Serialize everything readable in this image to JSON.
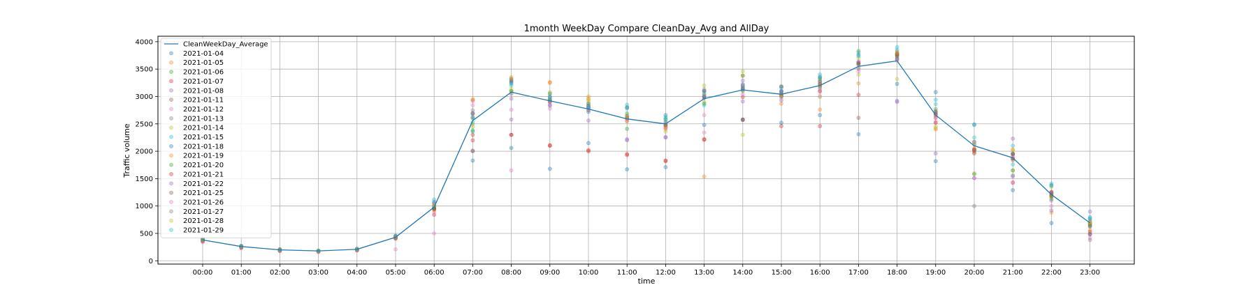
{
  "chart_data": {
    "type": "scatter",
    "title": "1month WeekDay Compare CleanDay_Avg and AllDay",
    "xlabel": "time",
    "ylabel": "Traffic volume",
    "categories": [
      "00:00",
      "01:00",
      "02:00",
      "03:00",
      "04:00",
      "05:00",
      "06:00",
      "07:00",
      "08:00",
      "09:00",
      "10:00",
      "11:00",
      "12:00",
      "13:00",
      "14:00",
      "15:00",
      "16:00",
      "17:00",
      "18:00",
      "19:00",
      "20:00",
      "21:00",
      "22:00",
      "23:00"
    ],
    "ylim": [
      -60,
      4100
    ],
    "yticks": [
      0,
      500,
      1000,
      1500,
      2000,
      2500,
      3000,
      3500,
      4000
    ],
    "grid": true,
    "legend_position": "upper-left",
    "line_series": {
      "name": "CleanWeekDay_Average",
      "color": "#1f77b4",
      "values": [
        380,
        260,
        200,
        180,
        210,
        430,
        980,
        2560,
        3080,
        2920,
        2770,
        2590,
        2500,
        2960,
        3120,
        3040,
        3200,
        3550,
        3650,
        2660,
        2100,
        1880,
        1210,
        690
      ]
    },
    "series": [
      {
        "name": "2021-01-04",
        "color": "#1f77b4",
        "values": [
          370,
          250,
          190,
          170,
          200,
          420,
          950,
          1830,
          2060,
          1680,
          2150,
          1670,
          1710,
          2480,
          2580,
          2520,
          2660,
          2310,
          3230,
          1820,
          2490,
          1290,
          690,
          480
        ]
      },
      {
        "name": "2021-01-05",
        "color": "#ff7f0e",
        "values": [
          360,
          240,
          185,
          170,
          195,
          410,
          930,
          2930,
          3300,
          3260,
          2950,
          2620,
          2440,
          3020,
          3150,
          3040,
          3220,
          3610,
          3750,
          2690,
          2050,
          1930,
          1230,
          680
        ]
      },
      {
        "name": "2021-01-06",
        "color": "#2ca02c",
        "values": [
          380,
          255,
          195,
          175,
          205,
          425,
          960,
          2600,
          3100,
          2940,
          2800,
          2410,
          2470,
          2980,
          3100,
          3010,
          3180,
          3520,
          3700,
          2660,
          1990,
          1870,
          1200,
          690
        ]
      },
      {
        "name": "2021-01-07",
        "color": "#d62728",
        "values": [
          390,
          260,
          200,
          180,
          210,
          430,
          990,
          2200,
          2300,
          2100,
          2020,
          1950,
          1820,
          2210,
          2990,
          2460,
          2460,
          3030,
          3770,
          2610,
          2020,
          1870,
          1170,
          670
        ]
      },
      {
        "name": "2021-01-08",
        "color": "#9467bd",
        "values": [
          400,
          270,
          210,
          185,
          220,
          450,
          1020,
          2000,
          2580,
          2850,
          2560,
          2200,
          2250,
          2990,
          2910,
          2930,
          3250,
          3600,
          2920,
          1960,
          1510,
          1540,
          1100,
          620
        ]
      },
      {
        "name": "2021-01-11",
        "color": "#8c564b",
        "values": [
          365,
          245,
          190,
          170,
          200,
          415,
          945,
          2680,
          3250,
          2950,
          2790,
          2610,
          2480,
          3100,
          2580,
          3180,
          3200,
          2610,
          3780,
          2680,
          2030,
          1840,
          1220,
          640
        ]
      },
      {
        "name": "2021-01-12",
        "color": "#e377c2",
        "values": [
          340,
          230,
          175,
          160,
          185,
          210,
          500,
          2920,
          1650,
          2780,
          2880,
          2650,
          2460,
          2660,
          3040,
          3020,
          3110,
          3460,
          3650,
          2540,
          2010,
          1910,
          1240,
          700
        ]
      },
      {
        "name": "2021-01-13",
        "color": "#7f7f7f",
        "values": [
          375,
          255,
          195,
          175,
          205,
          430,
          1080,
          2750,
          3270,
          3000,
          2840,
          2640,
          2540,
          3060,
          3120,
          3100,
          3280,
          3600,
          3680,
          2700,
          2170,
          1950,
          1250,
          720
        ]
      },
      {
        "name": "2021-01-14",
        "color": "#bcbd22",
        "values": [
          385,
          260,
          200,
          180,
          210,
          440,
          1000,
          2450,
          3320,
          3060,
          2920,
          2540,
          2400,
          2900,
          2300,
          3050,
          2990,
          3400,
          3320,
          2420,
          1600,
          1650,
          1180,
          690
        ]
      },
      {
        "name": "2021-01-15",
        "color": "#17becf",
        "values": [
          395,
          270,
          205,
          185,
          215,
          455,
          1060,
          2360,
          3200,
          2930,
          2790,
          2850,
          2620,
          2840,
          3180,
          3100,
          3340,
          3800,
          3900,
          2940,
          2480,
          1760,
          1410,
          780
        ]
      },
      {
        "name": "2021-01-18",
        "color": "#1f77b4",
        "values": [
          370,
          250,
          190,
          175,
          200,
          420,
          960,
          2620,
          3280,
          3050,
          2720,
          2800,
          2660,
          3100,
          3140,
          3080,
          3360,
          3760,
          3680,
          3080,
          2120,
          1960,
          1380,
          760
        ]
      },
      {
        "name": "2021-01-19",
        "color": "#ff7f0e",
        "values": [
          355,
          240,
          185,
          170,
          195,
          405,
          920,
          2950,
          3350,
          3250,
          3000,
          2560,
          2430,
          1540,
          3380,
          2870,
          2760,
          3240,
          3820,
          2400,
          2040,
          2030,
          880,
          560
        ]
      },
      {
        "name": "2021-01-20",
        "color": "#2ca02c",
        "values": [
          380,
          255,
          195,
          175,
          205,
          430,
          970,
          2380,
          3100,
          2910,
          2870,
          2690,
          2590,
          2870,
          3380,
          3000,
          3320,
          3830,
          3760,
          2770,
          1580,
          1650,
          1130,
          640
        ]
      },
      {
        "name": "2021-01-21",
        "color": "#d62728",
        "values": [
          390,
          265,
          200,
          180,
          210,
          435,
          840,
          2300,
          2300,
          2110,
          2000,
          1930,
          1830,
          2220,
          3200,
          3010,
          3090,
          3620,
          3790,
          2520,
          1960,
          1430,
          1260,
          490
        ]
      },
      {
        "name": "2021-01-22",
        "color": "#9467bd",
        "values": [
          400,
          270,
          210,
          185,
          215,
          450,
          1050,
          2700,
          2960,
          2830,
          2820,
          2220,
          2260,
          2970,
          3290,
          3100,
          3150,
          3640,
          2900,
          2680,
          2170,
          2230,
          920,
          900
        ]
      },
      {
        "name": "2021-01-25",
        "color": "#8c564b",
        "values": [
          370,
          250,
          190,
          170,
          200,
          420,
          950,
          2010,
          3050,
          2900,
          2750,
          2600,
          2480,
          3000,
          2570,
          3180,
          3230,
          3580,
          3730,
          2730,
          2020,
          1950,
          1190,
          530
        ]
      },
      {
        "name": "2021-01-26",
        "color": "#e377c2",
        "values": [
          350,
          235,
          180,
          165,
          190,
          400,
          880,
          2840,
          2760,
          2900,
          2780,
          2560,
          2420,
          2340,
          3220,
          2980,
          3010,
          3500,
          3680,
          2640,
          1510,
          1420,
          1000,
          420
        ]
      },
      {
        "name": "2021-01-27",
        "color": "#7f7f7f",
        "values": [
          380,
          255,
          195,
          175,
          205,
          430,
          1000,
          2690,
          3320,
          2980,
          2830,
          2800,
          2520,
          3130,
          3150,
          3050,
          3280,
          3600,
          3750,
          2720,
          1000,
          1560,
          1230,
          380
        ]
      },
      {
        "name": "2021-01-28",
        "color": "#bcbd22",
        "values": [
          385,
          260,
          200,
          180,
          210,
          440,
          1010,
          2490,
          3140,
          3080,
          2960,
          2620,
          2360,
          3200,
          3460,
          3010,
          3190,
          3700,
          3800,
          2450,
          2150,
          2020,
          1350,
          710
        ]
      },
      {
        "name": "2021-01-29",
        "color": "#17becf",
        "values": [
          395,
          270,
          205,
          185,
          215,
          460,
          1120,
          2520,
          3230,
          2990,
          2810,
          2780,
          2580,
          3030,
          3220,
          3160,
          3400,
          3740,
          3850,
          2860,
          2250,
          2100,
          1370,
          800
        ]
      }
    ]
  }
}
